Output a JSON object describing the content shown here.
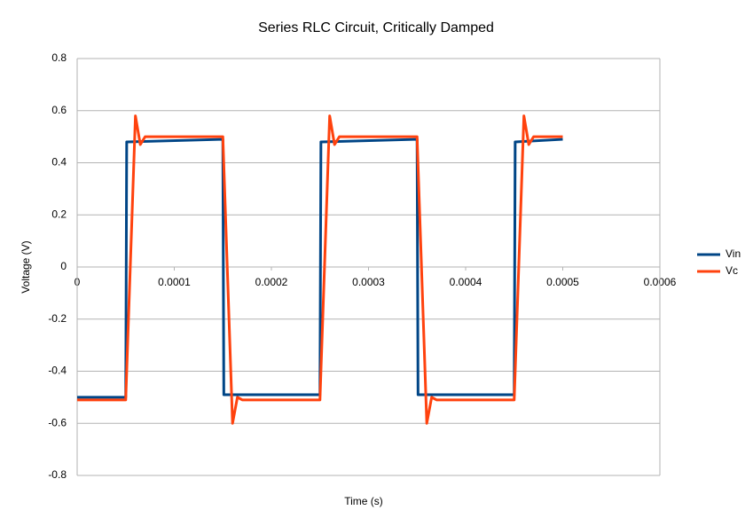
{
  "chart_data": {
    "type": "line",
    "title": "Series RLC Circuit, Critically Damped",
    "x_label": "Time (s)",
    "y_label": "Voltage (V)",
    "xlim": [
      0,
      0.0006
    ],
    "xticks": [
      0,
      0.0001,
      0.0002,
      0.0003,
      0.0004,
      0.0005,
      0.0006
    ],
    "ylim": [
      -0.8,
      0.8
    ],
    "yticks": [
      0.8,
      0.6,
      0.4,
      0.2,
      0,
      -0.2,
      -0.4,
      -0.6,
      -0.8
    ],
    "grid": true,
    "legend": "right",
    "series": [
      {
        "name": "Vin",
        "color": "#004586",
        "x": [
          0,
          5e-05,
          5.1e-05,
          0.00015,
          0.000151,
          0.00025,
          0.000251,
          0.00035,
          0.000351,
          0.00045,
          0.000451,
          0.0005
        ],
        "values": [
          -0.5,
          -0.5,
          0.48,
          0.49,
          -0.49,
          -0.49,
          0.48,
          0.49,
          -0.49,
          -0.49,
          0.48,
          0.49
        ]
      },
      {
        "name": "Vc",
        "color": "#ff420e",
        "x": [
          0,
          5e-05,
          6e-05,
          6.5e-05,
          7e-05,
          0.00015,
          0.00016,
          0.000165,
          0.00017,
          0.00025,
          0.00026,
          0.000265,
          0.00027,
          0.00035,
          0.00036,
          0.000365,
          0.00037,
          0.00045,
          0.00046,
          0.000465,
          0.00047,
          0.0005
        ],
        "values": [
          -0.51,
          -0.51,
          0.58,
          0.47,
          0.5,
          0.5,
          -0.6,
          -0.5,
          -0.51,
          -0.51,
          0.58,
          0.47,
          0.5,
          0.5,
          -0.6,
          -0.5,
          -0.51,
          -0.51,
          0.58,
          0.47,
          0.5,
          0.5
        ]
      }
    ]
  }
}
